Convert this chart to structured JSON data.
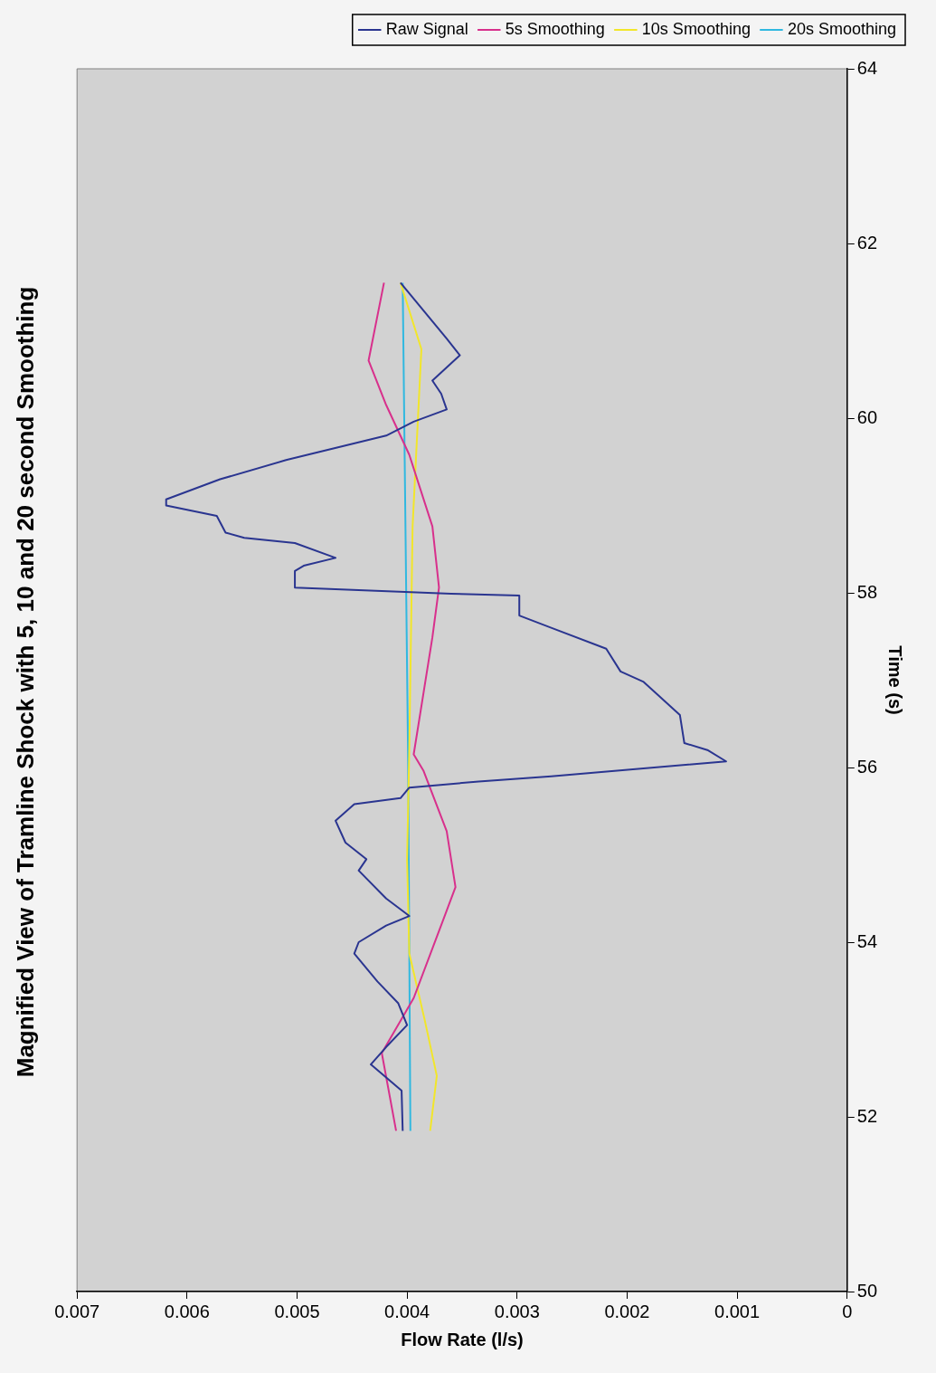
{
  "chart_data": {
    "type": "line",
    "title": "Magnified View of Tramline Shock with 5, 10 and 20 second Smoothing",
    "xlabel": "Flow Rate (l/s)",
    "ylabel": "Time (s)",
    "xlim": [
      0.007,
      0
    ],
    "xticks": [
      0.007,
      0.006,
      0.005,
      0.004,
      0.003,
      0.002,
      0.001,
      0
    ],
    "ylim": [
      50,
      64
    ],
    "yticks": [
      50,
      52,
      54,
      56,
      58,
      60,
      62,
      64
    ],
    "grid": false,
    "legend": "top right",
    "marker": "none",
    "line_style": "solid",
    "series": [
      {
        "name": "Raw Signal",
        "color": "#2a3590",
        "x": [
          0.00404,
          0.00405,
          0.00433,
          0.00419,
          0.004,
          0.00408,
          0.00427,
          0.00448,
          0.00444,
          0.00419,
          0.00398,
          0.00419,
          0.00444,
          0.00437,
          0.00456,
          0.00465,
          0.00448,
          0.00406,
          0.00398,
          0.00335,
          0.00269,
          0.0011,
          0.00127,
          0.00148,
          0.00152,
          0.00185,
          0.00206,
          0.00219,
          0.00269,
          0.00298,
          0.00298,
          0.0036,
          0.00502,
          0.00502,
          0.00494,
          0.00465,
          0.00502,
          0.00548,
          0.00565,
          0.00573,
          0.00619,
          0.00619,
          0.0057,
          0.0051,
          0.00419,
          0.00394,
          0.00364,
          0.00369,
          0.00377,
          0.00352,
          0.00364,
          0.00406
        ],
        "values": [
          51.84,
          52.3,
          52.6,
          52.8,
          53.05,
          53.3,
          53.55,
          53.87,
          54.0,
          54.19,
          54.3,
          54.5,
          54.82,
          54.95,
          55.14,
          55.39,
          55.58,
          55.65,
          55.77,
          55.84,
          55.9,
          56.07,
          56.2,
          56.28,
          56.6,
          56.98,
          57.1,
          57.36,
          57.6,
          57.74,
          57.97,
          57.99,
          58.06,
          58.25,
          58.31,
          58.4,
          58.57,
          58.63,
          58.69,
          58.88,
          59.0,
          59.07,
          59.3,
          59.52,
          59.8,
          59.96,
          60.1,
          60.28,
          60.43,
          60.72,
          60.91,
          61.55
        ]
      },
      {
        "name": "5s Smoothing",
        "color": "#d8308c",
        "x": [
          0.0041,
          0.00423,
          0.00394,
          0.00373,
          0.00356,
          0.00364,
          0.00385,
          0.00394,
          0.00377,
          0.00371,
          0.00377,
          0.00398,
          0.00419,
          0.00435,
          0.00421
        ],
        "values": [
          51.84,
          52.73,
          53.36,
          54.06,
          54.63,
          55.27,
          55.96,
          56.15,
          57.49,
          58.06,
          58.76,
          59.58,
          60.15,
          60.66,
          61.55
        ]
      },
      {
        "name": "10s Smoothing",
        "color": "#f2e62a",
        "x": [
          0.00379,
          0.00373,
          0.00384,
          0.00398,
          0.004,
          0.00398,
          0.00395,
          0.0039,
          0.00387,
          0.00406
        ],
        "values": [
          51.84,
          52.47,
          53.11,
          53.87,
          54.95,
          56.22,
          58.76,
          60.03,
          60.79,
          61.55
        ]
      },
      {
        "name": "20s Smoothing",
        "color": "#30b8e0",
        "x": [
          0.00397,
          0.00399,
          0.00404
        ],
        "values": [
          51.84,
          56.0,
          61.55
        ]
      }
    ]
  }
}
